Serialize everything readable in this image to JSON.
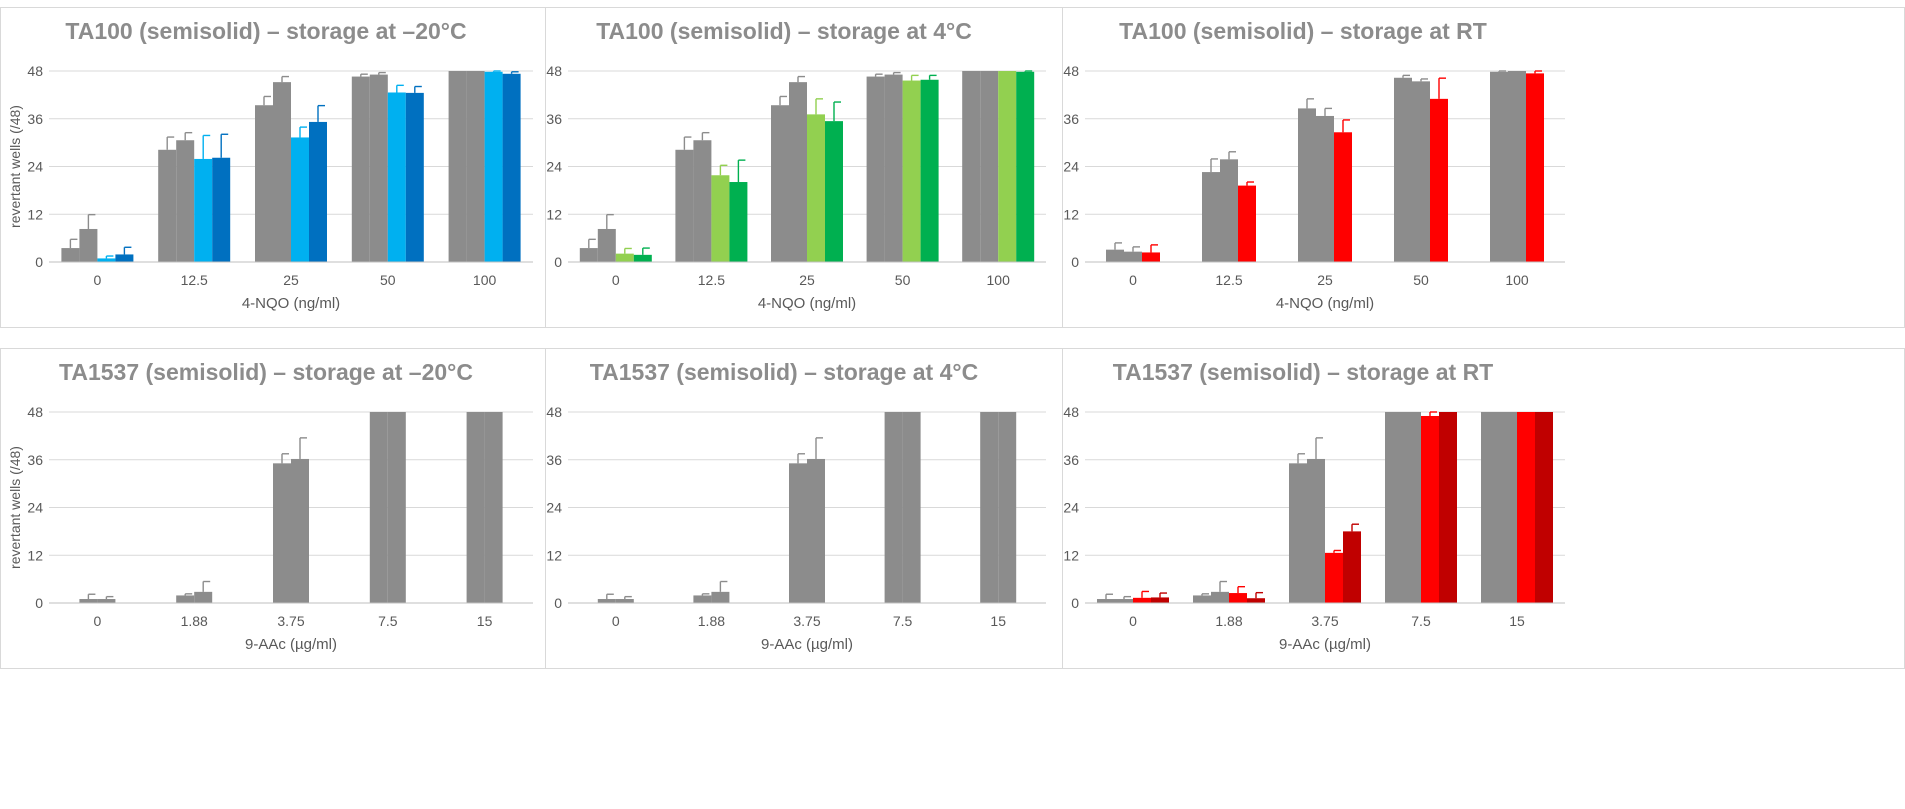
{
  "chart_data": [
    {
      "type": "bar",
      "title": "TA100 (semisolid) – storage at –20°C",
      "xlabel": "4-NQO (ng/ml)",
      "ylabel": "revertant wells (/48)",
      "ylim": [
        0,
        48
      ],
      "yticks": [
        "0",
        "12",
        "24",
        "36",
        "48"
      ],
      "grid": true,
      "categories": [
        "0",
        "12.5",
        "25",
        "50",
        "100"
      ],
      "series": [
        {
          "color": "#8c8c8c",
          "values": [
            3.5,
            28.2,
            39.4,
            46.6,
            48
          ],
          "errors": [
            2.2,
            3.2,
            2.2,
            0.6,
            0
          ]
        },
        {
          "color": "#8c8c8c",
          "values": [
            8.3,
            30.6,
            45.2,
            47.1,
            48
          ],
          "errors": [
            3.6,
            1.9,
            1.4,
            0.5,
            0
          ]
        },
        {
          "color": "#00b0f0",
          "values": [
            0.9,
            25.9,
            31.3,
            42.6,
            47.8
          ],
          "errors": [
            0.6,
            5.9,
            2.6,
            1.8,
            0.4
          ]
        },
        {
          "color": "#0070c0",
          "values": [
            1.9,
            26.2,
            35.2,
            42.5,
            47.3
          ],
          "errors": [
            1.8,
            5.9,
            4.1,
            1.6,
            0.5
          ]
        }
      ]
    },
    {
      "type": "bar",
      "title": "TA100 (semisolid) – storage at 4°C",
      "xlabel": "4-NQO (ng/ml)",
      "ylabel": "",
      "ylim": [
        0,
        48
      ],
      "yticks": [
        "0",
        "12",
        "24",
        "36",
        "48"
      ],
      "grid": true,
      "categories": [
        "0",
        "12.5",
        "25",
        "50",
        "100"
      ],
      "series": [
        {
          "color": "#8c8c8c",
          "values": [
            3.5,
            28.2,
            39.4,
            46.6,
            48
          ],
          "errors": [
            2.2,
            3.2,
            2.2,
            0.6,
            0
          ]
        },
        {
          "color": "#8c8c8c",
          "values": [
            8.3,
            30.6,
            45.2,
            47.1,
            48
          ],
          "errors": [
            3.6,
            1.9,
            1.4,
            0.5,
            0
          ]
        },
        {
          "color": "#92d050",
          "values": [
            2.1,
            21.8,
            37.1,
            45.6,
            48
          ],
          "errors": [
            1.3,
            2.5,
            3.9,
            1.3,
            0
          ]
        },
        {
          "color": "#00b050",
          "values": [
            1.8,
            20.1,
            35.4,
            45.8,
            47.8
          ],
          "errors": [
            1.7,
            5.5,
            4.8,
            1.1,
            0.4
          ]
        }
      ]
    },
    {
      "type": "bar",
      "title": "TA100 (semisolid) – storage at RT",
      "xlabel": "4-NQO (ng/ml)",
      "ylabel": "",
      "ylim": [
        0,
        48
      ],
      "yticks": [
        "0",
        "12",
        "24",
        "36",
        "48"
      ],
      "grid": true,
      "categories": [
        "0",
        "12.5",
        "25",
        "50",
        "100"
      ],
      "series": [
        {
          "color": "#8c8c8c",
          "values": [
            3.1,
            22.6,
            38.6,
            46.3,
            47.8
          ],
          "errors": [
            1.7,
            3.3,
            2.4,
            0.6,
            0.4
          ]
        },
        {
          "color": "#8c8c8c",
          "values": [
            2.6,
            25.8,
            36.7,
            45.4,
            48
          ],
          "errors": [
            1.2,
            1.9,
            1.9,
            0.6,
            0
          ]
        },
        {
          "color": "#ff0000",
          "values": [
            2.4,
            19.2,
            32.6,
            41,
            47.4
          ],
          "errors": [
            1.9,
            0.9,
            3.1,
            5.2,
            1
          ]
        }
      ]
    },
    {
      "type": "bar",
      "title": "TA1537 (semisolid) – storage at –20°C",
      "xlabel": "9-AAc (µg/ml)",
      "ylabel": "revertant wells (/48)",
      "ylim": [
        0,
        48
      ],
      "yticks": [
        "0",
        "12",
        "24",
        "36",
        "48"
      ],
      "grid": true,
      "categories": [
        "0",
        "1.88",
        "3.75",
        "7.5",
        "15"
      ],
      "series": [
        {
          "color": "#8c8c8c",
          "values": [
            1,
            1.9,
            35.1,
            48,
            48
          ],
          "errors": [
            1.2,
            0.4,
            2.4,
            0,
            0
          ]
        },
        {
          "color": "#8c8c8c",
          "values": [
            1,
            2.8,
            36.2,
            48,
            48
          ],
          "errors": [
            0.6,
            2.6,
            5.3,
            0,
            0
          ]
        }
      ]
    },
    {
      "type": "bar",
      "title": "TA1537 (semisolid) – storage at 4°C",
      "xlabel": "9-AAc (µg/ml)",
      "ylabel": "",
      "ylim": [
        0,
        48
      ],
      "yticks": [
        "0",
        "12",
        "24",
        "36",
        "48"
      ],
      "grid": true,
      "categories": [
        "0",
        "1.88",
        "3.75",
        "7.5",
        "15"
      ],
      "series": [
        {
          "color": "#8c8c8c",
          "values": [
            1,
            1.9,
            35.1,
            48,
            48
          ],
          "errors": [
            1.2,
            0.4,
            2.4,
            0,
            0
          ]
        },
        {
          "color": "#8c8c8c",
          "values": [
            1,
            2.8,
            36.2,
            48,
            48
          ],
          "errors": [
            0.6,
            2.6,
            5.3,
            0,
            0
          ]
        }
      ]
    },
    {
      "type": "bar",
      "title": "TA1537 (semisolid) – storage at RT",
      "xlabel": "9-AAc (µg/ml)",
      "ylabel": "",
      "ylim": [
        0,
        48
      ],
      "yticks": [
        "0",
        "12",
        "24",
        "36",
        "48"
      ],
      "grid": true,
      "categories": [
        "0",
        "1.88",
        "3.75",
        "7.5",
        "15"
      ],
      "series": [
        {
          "color": "#8c8c8c",
          "values": [
            1,
            1.9,
            35.1,
            48,
            48
          ],
          "errors": [
            1.2,
            0.4,
            2.4,
            0,
            0
          ]
        },
        {
          "color": "#8c8c8c",
          "values": [
            1,
            2.8,
            36.2,
            48,
            48
          ],
          "errors": [
            0.6,
            2.6,
            5.3,
            0,
            0
          ]
        },
        {
          "color": "#ff0000",
          "values": [
            1.3,
            2.5,
            12.6,
            47,
            48
          ],
          "errors": [
            1.6,
            1.6,
            0.6,
            1,
            0
          ]
        },
        {
          "color": "#c00000",
          "values": [
            1.4,
            1.2,
            18,
            48,
            48
          ],
          "errors": [
            1.1,
            1.4,
            1.8,
            0,
            0
          ]
        }
      ]
    }
  ]
}
